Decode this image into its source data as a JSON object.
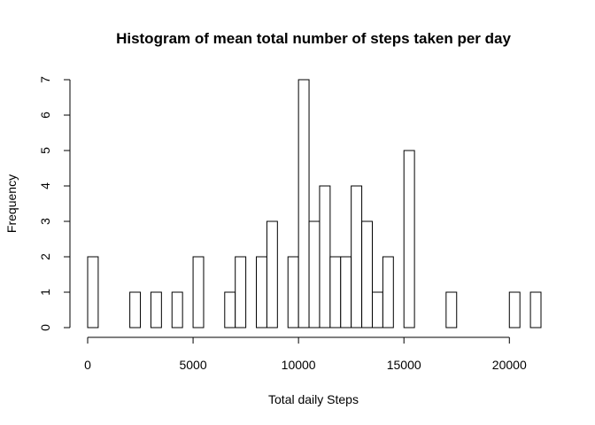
{
  "chart_data": {
    "type": "bar",
    "title": "Histogram of mean total number of steps taken per day",
    "xlabel": "Total daily Steps",
    "ylabel": "Frequency",
    "bin_width": 500,
    "x_range": [
      0,
      21500
    ],
    "ylim": [
      0,
      7
    ],
    "x_ticks": [
      0,
      5000,
      10000,
      15000,
      20000
    ],
    "y_ticks": [
      0,
      1,
      2,
      3,
      4,
      5,
      6,
      7
    ],
    "grid": false,
    "bin_starts": [
      0,
      500,
      1000,
      1500,
      2000,
      2500,
      3000,
      3500,
      4000,
      4500,
      5000,
      5500,
      6000,
      6500,
      7000,
      7500,
      8000,
      8500,
      9000,
      9500,
      10000,
      10500,
      11000,
      11500,
      12000,
      12500,
      13000,
      13500,
      14000,
      14500,
      15000,
      15500,
      16000,
      16500,
      17000,
      17500,
      18000,
      18500,
      19000,
      19500,
      20000,
      20500,
      21000
    ],
    "values": [
      2,
      0,
      0,
      0,
      1,
      0,
      1,
      0,
      1,
      0,
      2,
      0,
      0,
      1,
      2,
      0,
      2,
      3,
      0,
      2,
      7,
      3,
      4,
      2,
      2,
      4,
      3,
      1,
      2,
      0,
      5,
      0,
      0,
      0,
      1,
      0,
      0,
      0,
      0,
      0,
      1,
      0,
      1
    ]
  }
}
